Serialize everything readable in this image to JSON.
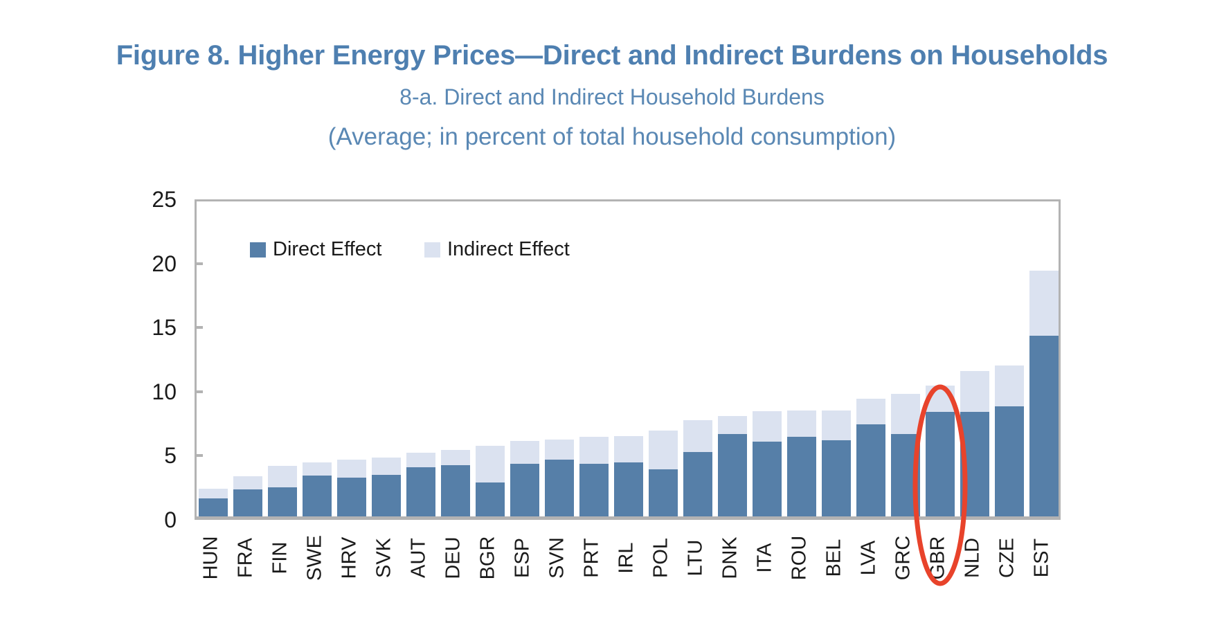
{
  "figure": {
    "title": "Figure 8. Higher Energy Prices—Direct and Indirect Burdens on Households",
    "subtitle": "8-a. Direct and Indirect Household Burdens",
    "units_note": "(Average; in percent of total household consumption)"
  },
  "chart_data": {
    "type": "bar",
    "stacked": true,
    "title": "8-a. Direct and Indirect Household Burdens",
    "xlabel": "",
    "ylabel": "",
    "ylim": [
      0,
      25
    ],
    "yticks": [
      0,
      5,
      10,
      15,
      20,
      25
    ],
    "grid": false,
    "legend_position": "top-left-inside",
    "categories": [
      "HUN",
      "FRA",
      "FIN",
      "SWE",
      "HRV",
      "SVK",
      "AUT",
      "DEU",
      "BGR",
      "ESP",
      "SVN",
      "PRT",
      "IRL",
      "POL",
      "LTU",
      "DNK",
      "ITA",
      "ROU",
      "BEL",
      "LVA",
      "GRC",
      "GBR",
      "NLD",
      "CZE",
      "EST"
    ],
    "series": [
      {
        "name": "Direct Effect",
        "color": "#567FA8",
        "values": [
          1.4,
          2.1,
          2.25,
          3.2,
          3.05,
          3.25,
          3.85,
          4.0,
          2.65,
          4.1,
          4.45,
          4.1,
          4.2,
          3.65,
          5.0,
          6.4,
          5.85,
          6.2,
          5.95,
          7.2,
          6.45,
          8.15,
          8.15,
          8.6,
          14.1
        ]
      },
      {
        "name": "Indirect Effect",
        "color": "#DBE2F0",
        "values": [
          0.75,
          1.0,
          1.65,
          1.0,
          1.4,
          1.35,
          1.15,
          1.2,
          2.85,
          1.8,
          1.55,
          2.1,
          2.05,
          3.05,
          2.5,
          1.4,
          2.35,
          2.05,
          2.3,
          2.0,
          3.15,
          2.05,
          3.2,
          3.2,
          5.1
        ]
      }
    ],
    "annotation": {
      "shape": "ellipse",
      "around_category": "GBR",
      "color": "#E8432B"
    },
    "colors": {
      "axis_frame": "#B3B3B3",
      "tick_text": "#1A1A1A",
      "title_text": "#4E7FB0"
    }
  }
}
